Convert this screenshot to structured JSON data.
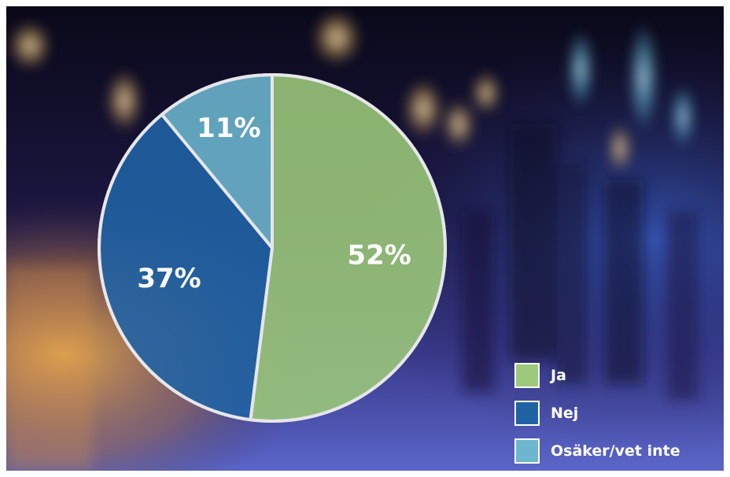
{
  "chart_data": {
    "type": "pie",
    "slices": [
      {
        "label": "Ja",
        "value": 52,
        "display": "52%",
        "color": "#9cc97a"
      },
      {
        "label": "Nej",
        "value": 37,
        "display": "37%",
        "color": "#1f63a5"
      },
      {
        "label": "Osäker/vet inte",
        "value": 11,
        "display": "11%",
        "color": "#6cb6cf"
      }
    ],
    "start": "12 o'clock",
    "direction": "clockwise",
    "legend_placement": "bottom-right"
  },
  "legend": {
    "items": [
      {
        "label": "Ja",
        "color": "#9cc97a"
      },
      {
        "label": "Nej",
        "color": "#1f63a5"
      },
      {
        "label": "Osäker/vet inte",
        "color": "#6cb6cf"
      }
    ]
  },
  "background": {
    "description_colors": [
      "#0b0a1c",
      "#3a2c6e",
      "#e8a23c",
      "#4a74d6"
    ]
  }
}
